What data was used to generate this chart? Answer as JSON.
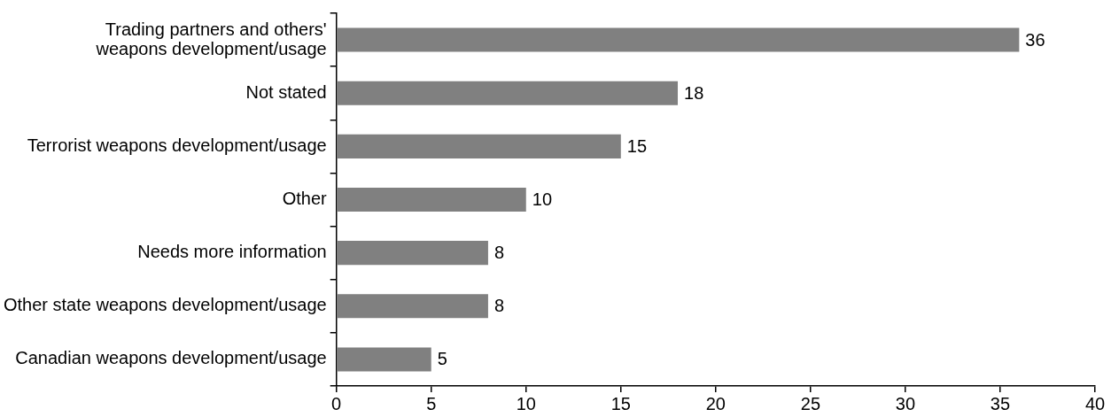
{
  "chart_data": {
    "type": "bar",
    "orientation": "horizontal",
    "categories": [
      "Trading partners and others' weapons development/usage",
      "Not stated",
      "Terrorist weapons development/usage",
      "Other",
      "Needs more information",
      "Other state weapons development/usage",
      "Canadian weapons development/usage"
    ],
    "values": [
      36,
      18,
      15,
      10,
      8,
      8,
      5
    ],
    "color": "#808080",
    "xlim": [
      0,
      40
    ],
    "xticks": [
      0,
      5,
      10,
      15,
      20,
      25,
      30,
      35,
      40
    ],
    "data_labels": true,
    "grid": false,
    "legend": false
  }
}
